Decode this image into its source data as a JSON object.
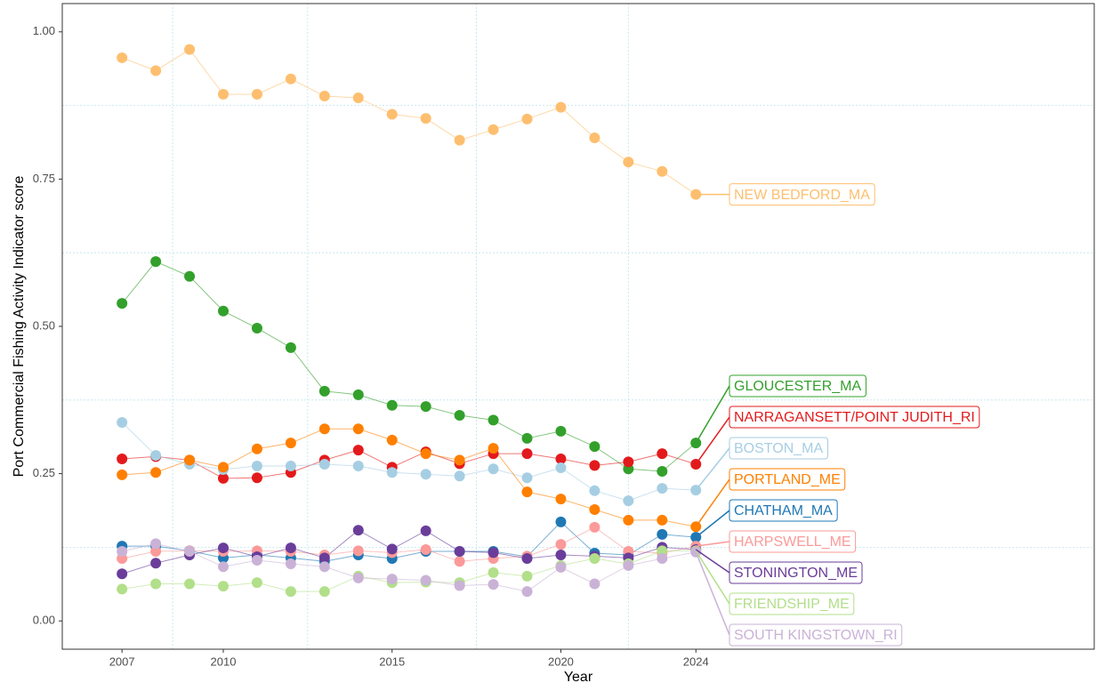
{
  "chart_data": {
    "type": "line",
    "xlabel": "Year",
    "ylabel": "Port Commercial Fishing Activity Indicator score",
    "x": [
      2007,
      2008,
      2009,
      2010,
      2011,
      2012,
      2013,
      2014,
      2015,
      2016,
      2017,
      2018,
      2019,
      2020,
      2021,
      2022,
      2023,
      2024
    ],
    "xlim": [
      2005.23,
      2035.8
    ],
    "xticks": [
      2007,
      2010,
      2015,
      2020,
      2024
    ],
    "ylim": [
      -0.048,
      1.048
    ],
    "yticks": [
      {
        "value": 0,
        "label": "0.00"
      },
      {
        "value": 0.25,
        "label": "0.25"
      },
      {
        "value": 0.5,
        "label": "0.50"
      },
      {
        "value": 0.75,
        "label": "0.75"
      },
      {
        "value": 1,
        "label": "1.00"
      }
    ],
    "grid": true,
    "series": [
      {
        "name": "NEW BEDFORD_MA",
        "color": "#FDBF6F",
        "values": [
          0.956,
          0.934,
          0.97,
          0.894,
          0.894,
          0.92,
          0.891,
          0.888,
          0.86,
          0.853,
          0.816,
          0.834,
          0.852,
          0.872,
          0.82,
          0.779,
          0.763,
          0.724
        ]
      },
      {
        "name": "GLOUCESTER_MA",
        "color": "#33A02C",
        "values": [
          0.539,
          0.61,
          0.585,
          0.526,
          0.497,
          0.464,
          0.39,
          0.384,
          0.366,
          0.364,
          0.349,
          0.341,
          0.31,
          0.322,
          0.296,
          0.258,
          0.254,
          0.302
        ]
      },
      {
        "name": "NARRAGANSETT/POINT JUDITH_RI",
        "color": "#E31A1C",
        "values": [
          0.275,
          0.279,
          0.273,
          0.242,
          0.243,
          0.252,
          0.273,
          0.29,
          0.261,
          0.287,
          0.267,
          0.284,
          0.284,
          0.275,
          0.264,
          0.27,
          0.284,
          0.266
        ]
      },
      {
        "name": "BOSTON_MA",
        "color": "#A6CEE3",
        "values": [
          0.337,
          0.281,
          0.266,
          0.257,
          0.263,
          0.263,
          0.266,
          0.263,
          0.252,
          0.249,
          0.246,
          0.258,
          0.243,
          0.26,
          0.221,
          0.204,
          0.225,
          0.222
        ]
      },
      {
        "name": "PORTLAND_ME",
        "color": "#FF7F00",
        "values": [
          0.248,
          0.252,
          0.273,
          0.261,
          0.292,
          0.302,
          0.326,
          0.326,
          0.307,
          0.284,
          0.273,
          0.293,
          0.219,
          0.207,
          0.189,
          0.171,
          0.171,
          0.16
        ]
      },
      {
        "name": "CHATHAM_MA",
        "color": "#1F78B4",
        "values": [
          0.127,
          0.127,
          0.119,
          0.107,
          0.112,
          0.107,
          0.101,
          0.112,
          0.106,
          0.118,
          0.118,
          0.118,
          0.109,
          0.168,
          0.115,
          0.112,
          0.147,
          0.142
        ]
      },
      {
        "name": "HARPSWELL_ME",
        "color": "#FB9A99",
        "values": [
          0.106,
          0.118,
          0.119,
          0.118,
          0.119,
          0.118,
          0.112,
          0.119,
          0.116,
          0.121,
          0.101,
          0.106,
          0.11,
          0.13,
          0.159,
          0.118,
          0.115,
          0.127
        ]
      },
      {
        "name": "STONINGTON_ME",
        "color": "#6A3D9A",
        "values": [
          0.08,
          0.098,
          0.112,
          0.124,
          0.109,
          0.124,
          0.107,
          0.154,
          0.122,
          0.153,
          0.118,
          0.116,
          0.106,
          0.112,
          0.11,
          0.107,
          0.125,
          0.121
        ]
      },
      {
        "name": "FRIENDSHIP_ME",
        "color": "#B2DF8A",
        "values": [
          0.054,
          0.063,
          0.063,
          0.059,
          0.065,
          0.05,
          0.05,
          0.076,
          0.065,
          0.066,
          0.065,
          0.082,
          0.076,
          0.094,
          0.106,
          0.097,
          0.119,
          0.119
        ]
      },
      {
        "name": "SOUTH KINGSTOWN_RI",
        "color": "#CAB2D6",
        "values": [
          0.118,
          0.131,
          0.118,
          0.092,
          0.103,
          0.097,
          0.092,
          0.073,
          0.071,
          0.069,
          0.06,
          0.062,
          0.05,
          0.091,
          0.063,
          0.094,
          0.106,
          0.117
        ]
      }
    ]
  }
}
